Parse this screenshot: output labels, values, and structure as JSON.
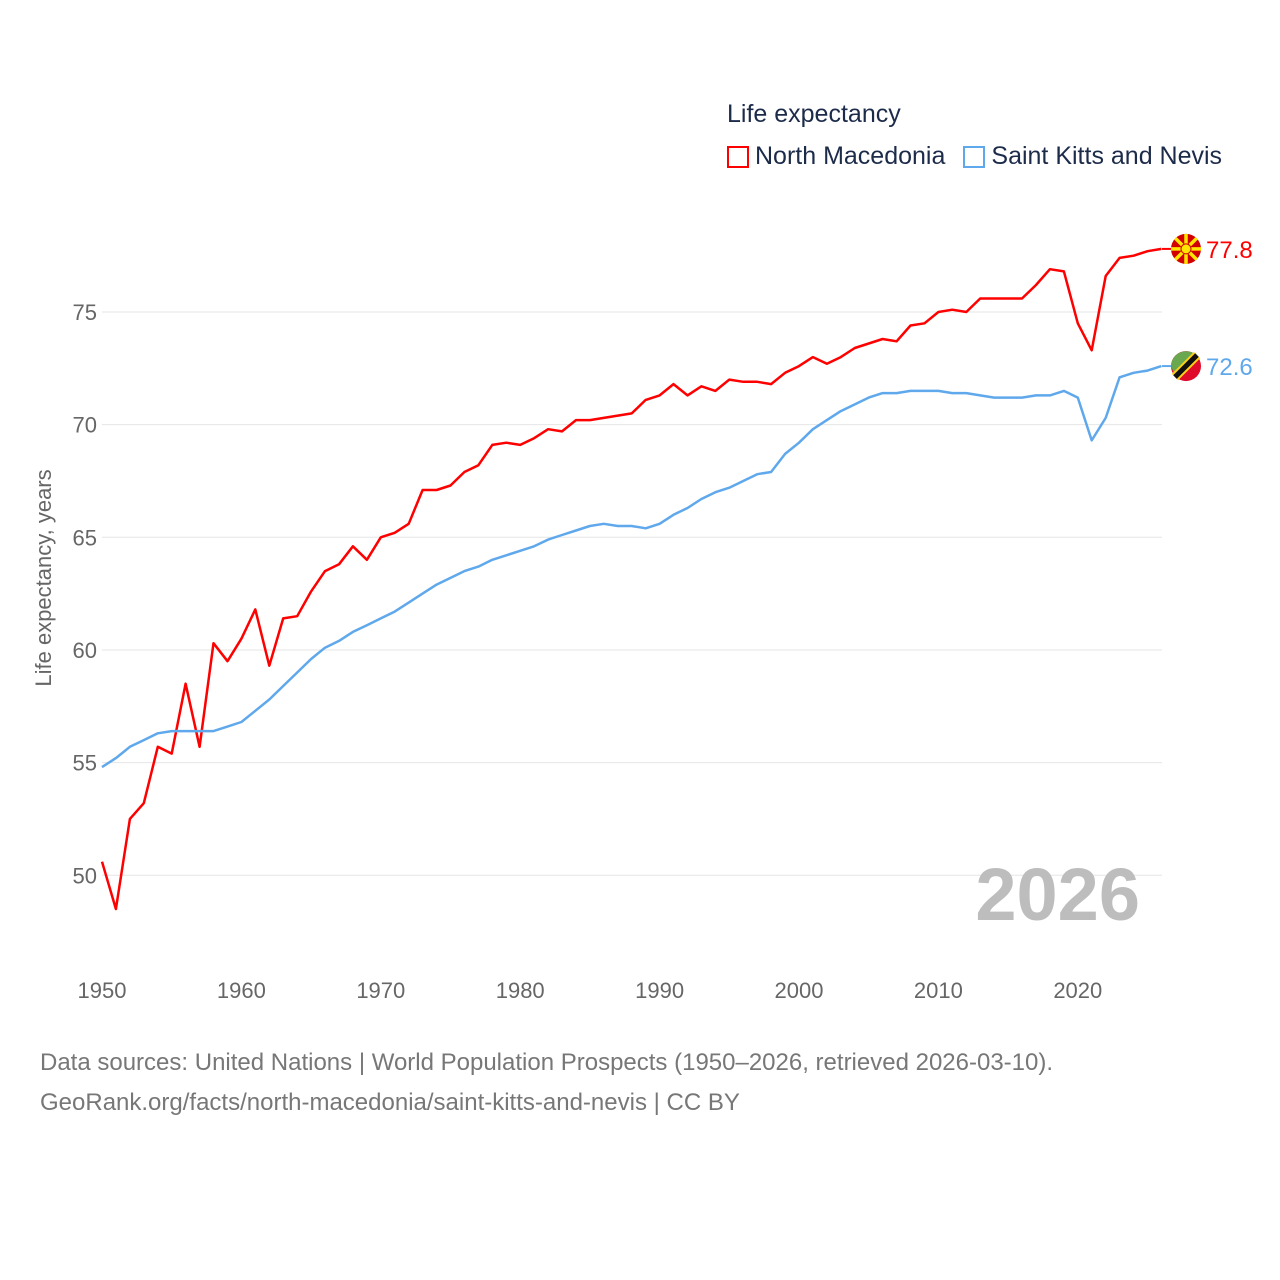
{
  "chart_data": {
    "type": "line",
    "title": "Life expectancy",
    "ylabel": "Life expectancy, years",
    "xlabel": "",
    "ylim": [
      47,
      80
    ],
    "xlim": [
      1950,
      2026
    ],
    "yticks": [
      50,
      55,
      60,
      65,
      70,
      75
    ],
    "xticks": [
      1950,
      1960,
      1970,
      1980,
      1990,
      2000,
      2010,
      2020
    ],
    "grid": true,
    "legend_position": "top-right",
    "watermark_year": "2026",
    "x": [
      1950,
      1951,
      1952,
      1953,
      1954,
      1955,
      1956,
      1957,
      1958,
      1959,
      1960,
      1961,
      1962,
      1963,
      1964,
      1965,
      1966,
      1967,
      1968,
      1969,
      1970,
      1971,
      1972,
      1973,
      1974,
      1975,
      1976,
      1977,
      1978,
      1979,
      1980,
      1981,
      1982,
      1983,
      1984,
      1985,
      1986,
      1987,
      1988,
      1989,
      1990,
      1991,
      1992,
      1993,
      1994,
      1995,
      1996,
      1997,
      1998,
      1999,
      2000,
      2001,
      2002,
      2003,
      2004,
      2005,
      2006,
      2007,
      2008,
      2009,
      2010,
      2011,
      2012,
      2013,
      2014,
      2015,
      2016,
      2017,
      2018,
      2019,
      2020,
      2021,
      2022,
      2023,
      2024,
      2025,
      2026
    ],
    "series": [
      {
        "name": "North Macedonia",
        "color": "#ff0000",
        "end_label": "77.8",
        "values": [
          50.6,
          48.5,
          52.5,
          53.2,
          55.7,
          55.4,
          58.5,
          55.7,
          60.3,
          59.5,
          60.5,
          61.8,
          59.3,
          61.4,
          61.5,
          62.6,
          63.5,
          63.8,
          64.6,
          64.0,
          65.0,
          65.2,
          65.6,
          67.1,
          67.1,
          67.3,
          67.9,
          68.2,
          69.1,
          69.2,
          69.1,
          69.4,
          69.8,
          69.7,
          70.2,
          70.2,
          70.3,
          70.4,
          70.5,
          71.1,
          71.3,
          71.8,
          71.3,
          71.7,
          71.5,
          72.0,
          71.9,
          71.9,
          71.8,
          72.3,
          72.6,
          73.0,
          72.7,
          73.0,
          73.4,
          73.6,
          73.8,
          73.7,
          74.4,
          74.5,
          75.0,
          75.1,
          75.0,
          75.6,
          75.6,
          75.6,
          75.6,
          76.2,
          76.9,
          76.8,
          74.5,
          73.3,
          76.6,
          77.4,
          77.5,
          77.7,
          77.8
        ]
      },
      {
        "name": "Saint Kitts and Nevis",
        "color": "#5fa8ec",
        "end_label": "72.6",
        "values": [
          54.8,
          55.2,
          55.7,
          56.0,
          56.3,
          56.4,
          56.4,
          56.4,
          56.4,
          56.6,
          56.8,
          57.3,
          57.8,
          58.4,
          59.0,
          59.6,
          60.1,
          60.4,
          60.8,
          61.1,
          61.4,
          61.7,
          62.1,
          62.5,
          62.9,
          63.2,
          63.5,
          63.7,
          64.0,
          64.2,
          64.4,
          64.6,
          64.9,
          65.1,
          65.3,
          65.5,
          65.6,
          65.5,
          65.5,
          65.4,
          65.6,
          66.0,
          66.3,
          66.7,
          67.0,
          67.2,
          67.5,
          67.8,
          67.9,
          68.7,
          69.2,
          69.8,
          70.2,
          70.6,
          70.9,
          71.2,
          71.4,
          71.4,
          71.5,
          71.5,
          71.5,
          71.4,
          71.4,
          71.3,
          71.2,
          71.2,
          71.2,
          71.3,
          71.3,
          71.5,
          71.2,
          69.3,
          70.3,
          72.1,
          72.3,
          72.4,
          72.6
        ]
      }
    ]
  },
  "footer": {
    "line1": "Data sources: United Nations | World Population Prospects (1950–2026, retrieved 2026-03-10).",
    "line2": "GeoRank.org/facts/north-macedonia/saint-kitts-and-nevis | CC BY"
  }
}
